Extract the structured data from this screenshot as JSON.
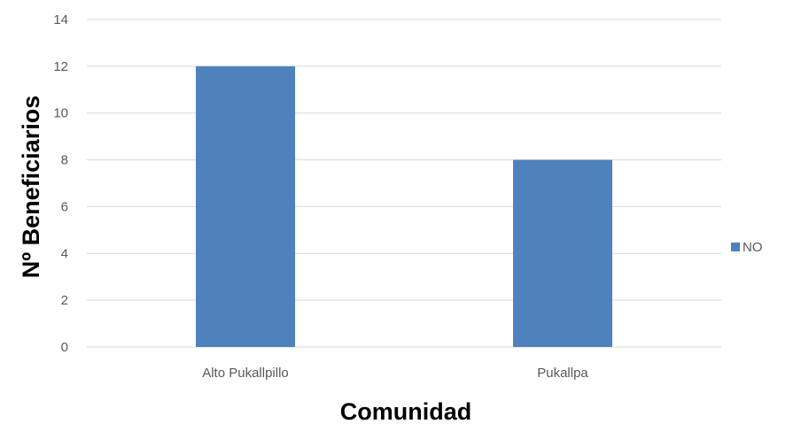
{
  "chart_data": {
    "type": "bar",
    "categories": [
      "Alto Pukallpillo",
      "Pukallpa"
    ],
    "series": [
      {
        "name": "NO",
        "values": [
          12,
          8
        ],
        "color": "#4f81bd"
      }
    ],
    "title": "",
    "xlabel": "Comunidad",
    "ylabel": "Nº Beneficiarios",
    "ylim": [
      0,
      14
    ],
    "yticks": [
      0,
      2,
      4,
      6,
      8,
      10,
      12,
      14
    ],
    "grid": true,
    "legend_position": "right",
    "gridline_color": "#d9d9d9"
  }
}
